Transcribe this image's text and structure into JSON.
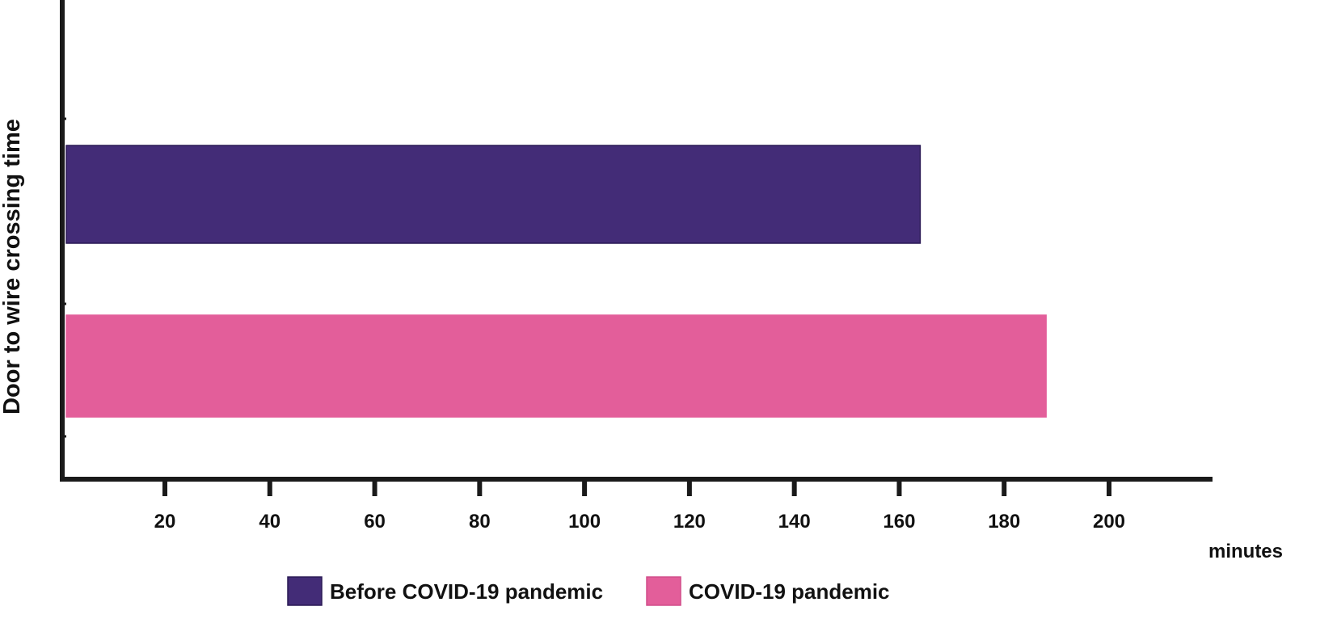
{
  "chart_data": {
    "type": "bar",
    "orientation": "horizontal",
    "ylabel": "Door to wire crossing time",
    "x_unit_label": "minutes",
    "xlim": [
      0,
      220
    ],
    "x_ticks": [
      20,
      40,
      60,
      80,
      100,
      120,
      140,
      160,
      180,
      200
    ],
    "grid": false,
    "legend_position": "bottom",
    "series": [
      {
        "name": "Before COVID-19 pandemic",
        "value": 164,
        "color": "#432c77"
      },
      {
        "name": "COVID-19 pandemic",
        "value": 188,
        "color": "#e35e9a"
      }
    ]
  }
}
